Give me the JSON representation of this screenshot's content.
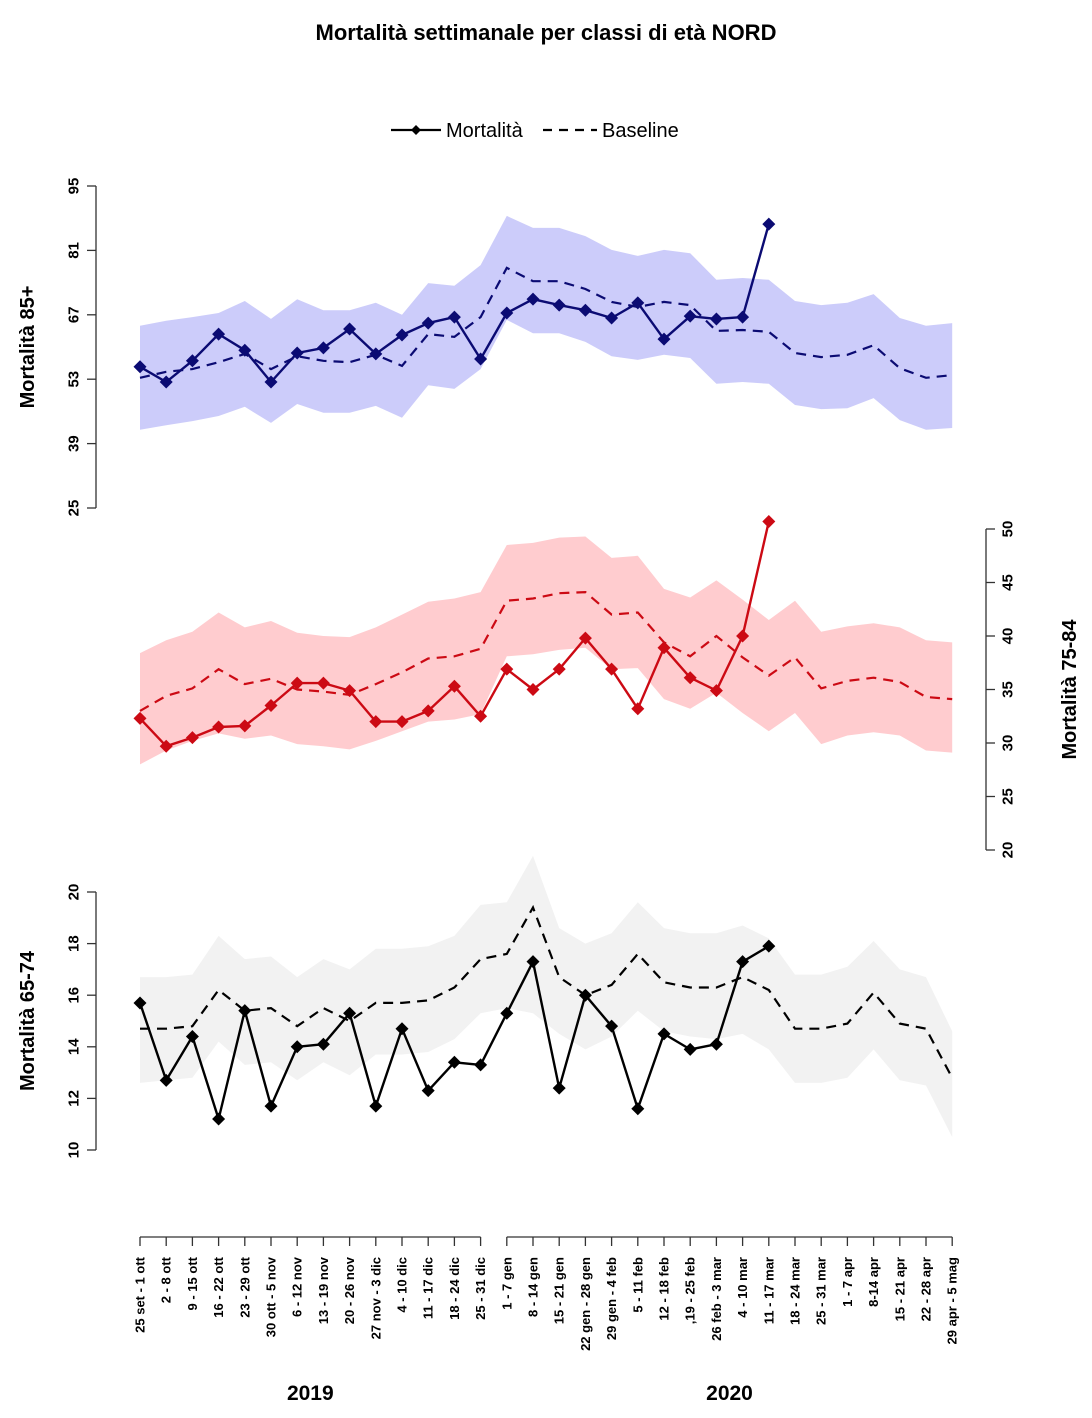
{
  "chart_data": {
    "type": "line",
    "title": "Mortalità settimanale per classi di età NORD",
    "legend": {
      "position": "top-center",
      "entries": [
        {
          "label": "Mortalità",
          "style": "solid-diamond"
        },
        {
          "label": "Baseline",
          "style": "dashed"
        }
      ]
    },
    "x": {
      "groups": [
        {
          "label": "2019",
          "categories": [
            "25 set - 1 ott",
            "2 - 8 ott",
            "9 - 15 ott",
            "16 - 22 ott",
            "23 - 29 ott",
            "30 ott - 5 nov",
            "6 - 12 nov",
            "13 - 19 nov",
            "20 - 26 nov",
            "27 nov - 3 dic",
            "4 - 10 dic",
            "11 - 17 dic",
            "18 - 24 dic",
            "25 - 31 dic"
          ]
        },
        {
          "label": "2020",
          "categories": [
            "1 - 7 gen",
            "8 - 14 gen",
            "15 - 21 gen",
            "22 gen - 28 gen",
            "29 gen - 4 feb",
            "5 - 11 feb",
            "12 - 18 feb",
            ",19 - 25 feb",
            "26 feb - 3 mar",
            "4 - 10 mar",
            "11 - 17 mar",
            "18 - 24 mar",
            "25 - 31 mar",
            "1 - 7 apr",
            "8-14 apr",
            "15 - 21 apr",
            "22 - 28 apr",
            "29 apr - 5 mag"
          ]
        }
      ]
    },
    "panels": [
      {
        "name": "85+",
        "ylabel": "Mortalità 85+",
        "yaxis_side": "left",
        "ylim": [
          25,
          95
        ],
        "yticks": [
          25,
          39,
          53,
          67,
          81,
          95
        ],
        "line_color": "#0b0b73",
        "band_color": "#ccccfa",
        "mortality": [
          55.7,
          52.4,
          57.0,
          62.8,
          59.3,
          52.4,
          58.7,
          59.8,
          63.9,
          58.5,
          62.6,
          65.2,
          66.5,
          57.4,
          67.4,
          70.4,
          69.1,
          68.0,
          66.3,
          69.6,
          61.7,
          66.7,
          66.1,
          66.5,
          86.7
        ],
        "baseline": [
          53.3,
          54.6,
          55.2,
          56.7,
          58.5,
          55.2,
          58.0,
          57.0,
          56.7,
          58.3,
          55.9,
          62.8,
          62.2,
          66.5,
          77.2,
          74.3,
          74.3,
          72.6,
          69.8,
          68.7,
          69.8,
          69.1,
          63.5,
          63.7,
          63.3,
          58.7,
          57.8,
          58.3,
          60.4,
          55.4,
          53.3,
          53.9
        ],
        "band_upper": [
          64.6,
          65.7,
          66.5,
          67.4,
          70.0,
          66.1,
          70.4,
          68.0,
          68.0,
          69.6,
          67.0,
          73.9,
          73.3,
          77.8,
          88.5,
          85.9,
          85.9,
          84.1,
          81.1,
          79.8,
          81.1,
          80.4,
          74.6,
          75.0,
          74.6,
          70.0,
          69.1,
          69.6,
          71.5,
          66.3,
          64.6,
          65.2
        ],
        "band_lower": [
          42.0,
          43.0,
          43.9,
          45.0,
          47.0,
          43.5,
          47.6,
          45.7,
          45.7,
          47.2,
          44.6,
          51.7,
          50.9,
          55.2,
          65.9,
          63.0,
          63.0,
          61.1,
          58.0,
          57.2,
          58.3,
          57.6,
          52.0,
          52.4,
          52.0,
          47.4,
          46.5,
          46.7,
          48.9,
          44.1,
          42.0,
          42.4
        ]
      },
      {
        "name": "75-84",
        "ylabel": "Mortalità 75-84",
        "yaxis_side": "right",
        "ylim": [
          20,
          50
        ],
        "yticks": [
          20,
          25,
          30,
          35,
          40,
          45,
          50
        ],
        "line_color": "#cc0a14",
        "band_color": "#ffcccf",
        "mortality": [
          32.3,
          29.7,
          30.5,
          31.5,
          31.6,
          33.5,
          35.6,
          35.6,
          34.9,
          32.0,
          32.0,
          33.0,
          35.3,
          32.5,
          36.9,
          35.0,
          36.9,
          39.8,
          36.9,
          33.2,
          38.9,
          36.1,
          34.9,
          40.0,
          50.7
        ],
        "baseline": [
          33.0,
          34.4,
          35.1,
          36.9,
          35.5,
          36.0,
          35.0,
          34.8,
          34.5,
          35.5,
          36.6,
          37.9,
          38.1,
          38.8,
          43.3,
          43.5,
          44.0,
          44.1,
          42.0,
          42.2,
          39.4,
          38.1,
          40.0,
          38.0,
          36.3,
          38.0,
          35.1,
          35.8,
          36.1,
          35.7,
          34.3,
          34.1
        ],
        "band_upper": [
          38.4,
          39.6,
          40.4,
          42.2,
          40.8,
          41.4,
          40.3,
          40.0,
          39.9,
          40.8,
          42.0,
          43.2,
          43.5,
          44.1,
          48.5,
          48.7,
          49.2,
          49.3,
          47.3,
          47.5,
          44.4,
          43.6,
          45.2,
          43.4,
          41.5,
          43.3,
          40.4,
          40.9,
          41.2,
          40.8,
          39.6,
          39.4
        ],
        "band_lower": [
          28.0,
          29.3,
          30.2,
          30.9,
          30.4,
          30.7,
          29.9,
          29.7,
          29.4,
          30.2,
          31.1,
          32.0,
          32.2,
          32.7,
          38.1,
          38.3,
          38.7,
          38.9,
          36.9,
          37.0,
          34.1,
          33.2,
          34.7,
          32.8,
          31.1,
          32.8,
          29.9,
          30.7,
          31.0,
          30.7,
          29.3,
          29.1
        ]
      },
      {
        "name": "65-74",
        "ylabel": "Mortalità 65-74",
        "yaxis_side": "left",
        "ylim": [
          10,
          20
        ],
        "yticks": [
          10,
          12,
          14,
          16,
          18,
          20
        ],
        "line_color": "#000000",
        "band_color": "#f2f2f2",
        "mortality": [
          15.7,
          12.7,
          14.4,
          11.2,
          15.4,
          11.7,
          14.0,
          14.1,
          15.3,
          11.7,
          14.7,
          12.3,
          13.4,
          13.3,
          15.3,
          17.3,
          12.4,
          16.0,
          14.8,
          11.6,
          14.5,
          13.9,
          14.1,
          17.3,
          17.9
        ],
        "baseline": [
          14.7,
          14.7,
          14.8,
          16.2,
          15.4,
          15.5,
          14.8,
          15.5,
          15.0,
          15.7,
          15.7,
          15.8,
          16.3,
          17.4,
          17.6,
          19.4,
          16.7,
          16.0,
          16.4,
          17.6,
          16.5,
          16.3,
          16.3,
          16.7,
          16.2,
          14.7,
          14.7,
          14.9,
          16.1,
          14.9,
          14.7,
          12.8
        ],
        "band_upper": [
          16.7,
          16.7,
          16.8,
          18.3,
          17.4,
          17.5,
          16.7,
          17.4,
          17.0,
          17.8,
          17.8,
          17.9,
          18.3,
          19.5,
          19.6,
          21.4,
          18.6,
          18.0,
          18.4,
          19.6,
          18.6,
          18.4,
          18.4,
          18.7,
          18.2,
          16.8,
          16.8,
          17.1,
          18.1,
          17.0,
          16.7,
          14.6
        ],
        "band_lower": [
          12.6,
          12.7,
          12.8,
          14.2,
          13.3,
          13.4,
          12.7,
          13.4,
          12.9,
          13.7,
          13.7,
          13.8,
          14.3,
          15.3,
          15.5,
          15.3,
          14.5,
          13.9,
          14.4,
          15.4,
          14.6,
          14.4,
          14.3,
          14.5,
          13.9,
          12.6,
          12.6,
          12.8,
          13.9,
          12.7,
          12.5,
          10.5
        ]
      }
    ]
  }
}
